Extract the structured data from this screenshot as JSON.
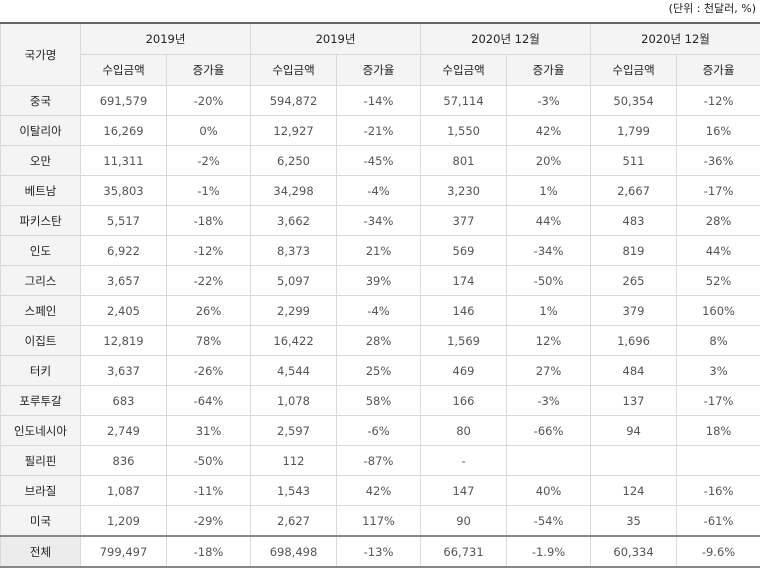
{
  "unit_label": "(단위 : 천달러, %)",
  "header": {
    "country_label": "국가명",
    "groups": [
      "2019년",
      "2019년",
      "2020년 12월",
      "2020년 12월"
    ],
    "sub_amount": "수입금액",
    "sub_growth": "증가율"
  },
  "rows": [
    {
      "country": "중국",
      "cells": [
        "691,579",
        "-20%",
        "594,872",
        "-14%",
        "57,114",
        "-3%",
        "50,354",
        "-12%"
      ]
    },
    {
      "country": "이탈리아",
      "cells": [
        "16,269",
        "0%",
        "12,927",
        "-21%",
        "1,550",
        "42%",
        "1,799",
        "16%"
      ]
    },
    {
      "country": "오만",
      "cells": [
        "11,311",
        "-2%",
        "6,250",
        "-45%",
        "801",
        "20%",
        "511",
        "-36%"
      ]
    },
    {
      "country": "베트남",
      "cells": [
        "35,803",
        "-1%",
        "34,298",
        "-4%",
        "3,230",
        "1%",
        "2,667",
        "-17%"
      ]
    },
    {
      "country": "파키스탄",
      "cells": [
        "5,517",
        "-18%",
        "3,662",
        "-34%",
        "377",
        "44%",
        "483",
        "28%"
      ]
    },
    {
      "country": "인도",
      "cells": [
        "6,922",
        "-12%",
        "8,373",
        "21%",
        "569",
        "-34%",
        "819",
        "44%"
      ]
    },
    {
      "country": "그리스",
      "cells": [
        "3,657",
        "-22%",
        "5,097",
        "39%",
        "174",
        "-50%",
        "265",
        "52%"
      ]
    },
    {
      "country": "스페인",
      "cells": [
        "2,405",
        "26%",
        "2,299",
        "-4%",
        "146",
        "1%",
        "379",
        "160%"
      ]
    },
    {
      "country": "이집트",
      "cells": [
        "12,819",
        "78%",
        "16,422",
        "28%",
        "1,569",
        "12%",
        "1,696",
        "8%"
      ]
    },
    {
      "country": "터키",
      "cells": [
        "3,637",
        "-26%",
        "4,544",
        "25%",
        "469",
        "27%",
        "484",
        "3%"
      ]
    },
    {
      "country": "포루투갈",
      "cells": [
        "683",
        "-64%",
        "1,078",
        "58%",
        "166",
        "-3%",
        "137",
        "-17%"
      ]
    },
    {
      "country": "인도네시아",
      "cells": [
        "2,749",
        "31%",
        "2,597",
        "-6%",
        "80",
        "-66%",
        "94",
        "18%"
      ]
    },
    {
      "country": "필리핀",
      "cells": [
        "836",
        "-50%",
        "112",
        "-87%",
        "-",
        "",
        "",
        ""
      ]
    },
    {
      "country": "브라질",
      "cells": [
        "1,087",
        "-11%",
        "1,543",
        "42%",
        "147",
        "40%",
        "124",
        "-16%"
      ]
    },
    {
      "country": "미국",
      "cells": [
        "1,209",
        "-29%",
        "2,627",
        "117%",
        "90",
        "-54%",
        "35",
        "-61%"
      ]
    }
  ],
  "total": {
    "country": "전체",
    "cells": [
      "799,497",
      "-18%",
      "698,498",
      "-13%",
      "66,731",
      "-1.9%",
      "60,334",
      "-9.6%"
    ]
  }
}
